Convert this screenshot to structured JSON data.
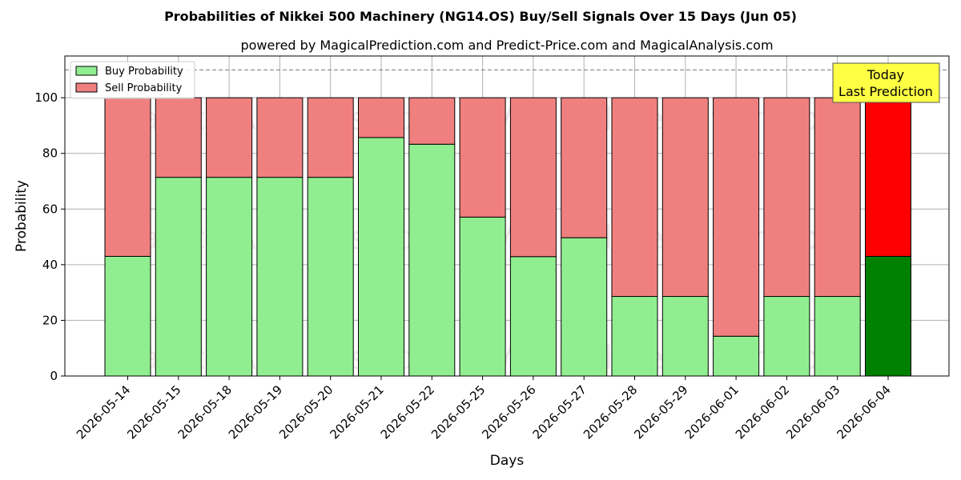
{
  "chart_data": {
    "type": "bar",
    "title": "Probabilities of Nikkei 500 Machinery (NG14.OS) Buy/Sell Signals Over 15 Days (Jun 05)",
    "subtitle": "powered by MagicalPrediction.com and Predict-Price.com and MagicalAnalysis.com",
    "xlabel": "Days",
    "ylabel": "Probability",
    "ylim": [
      0,
      115
    ],
    "yticks": [
      0,
      20,
      40,
      60,
      80,
      100
    ],
    "reference_line": 110,
    "stacked": true,
    "grid": true,
    "legend_position": "top-left",
    "categories": [
      "2026-05-14",
      "2026-05-15",
      "2026-05-18",
      "2026-05-19",
      "2026-05-20",
      "2026-05-21",
      "2026-05-22",
      "2026-05-25",
      "2026-05-26",
      "2026-05-27",
      "2026-05-28",
      "2026-05-29",
      "2026-06-01",
      "2026-06-02",
      "2026-06-03",
      "2026-06-04"
    ],
    "series": [
      {
        "name": "Buy Probability",
        "color": "#90ee90",
        "highlight_color": "#008000",
        "values": [
          43,
          71.4,
          71.4,
          71.4,
          71.4,
          85.7,
          83.3,
          57.1,
          42.9,
          49.7,
          28.6,
          28.6,
          14.3,
          28.6,
          28.6,
          43
        ]
      },
      {
        "name": "Sell Probability",
        "color": "#f08080",
        "highlight_color": "#ff0000",
        "values": [
          57,
          28.6,
          28.6,
          28.6,
          28.6,
          14.3,
          16.7,
          42.9,
          57.1,
          50.3,
          71.4,
          71.4,
          85.7,
          71.4,
          71.4,
          57
        ]
      }
    ],
    "highlight_index": 15,
    "annotation": {
      "lines": [
        "Today",
        "Last Prediction"
      ],
      "background": "#ffff44"
    },
    "watermarks": [
      "MagicalAnalysis.com",
      "MagicalPrediction.com"
    ]
  }
}
